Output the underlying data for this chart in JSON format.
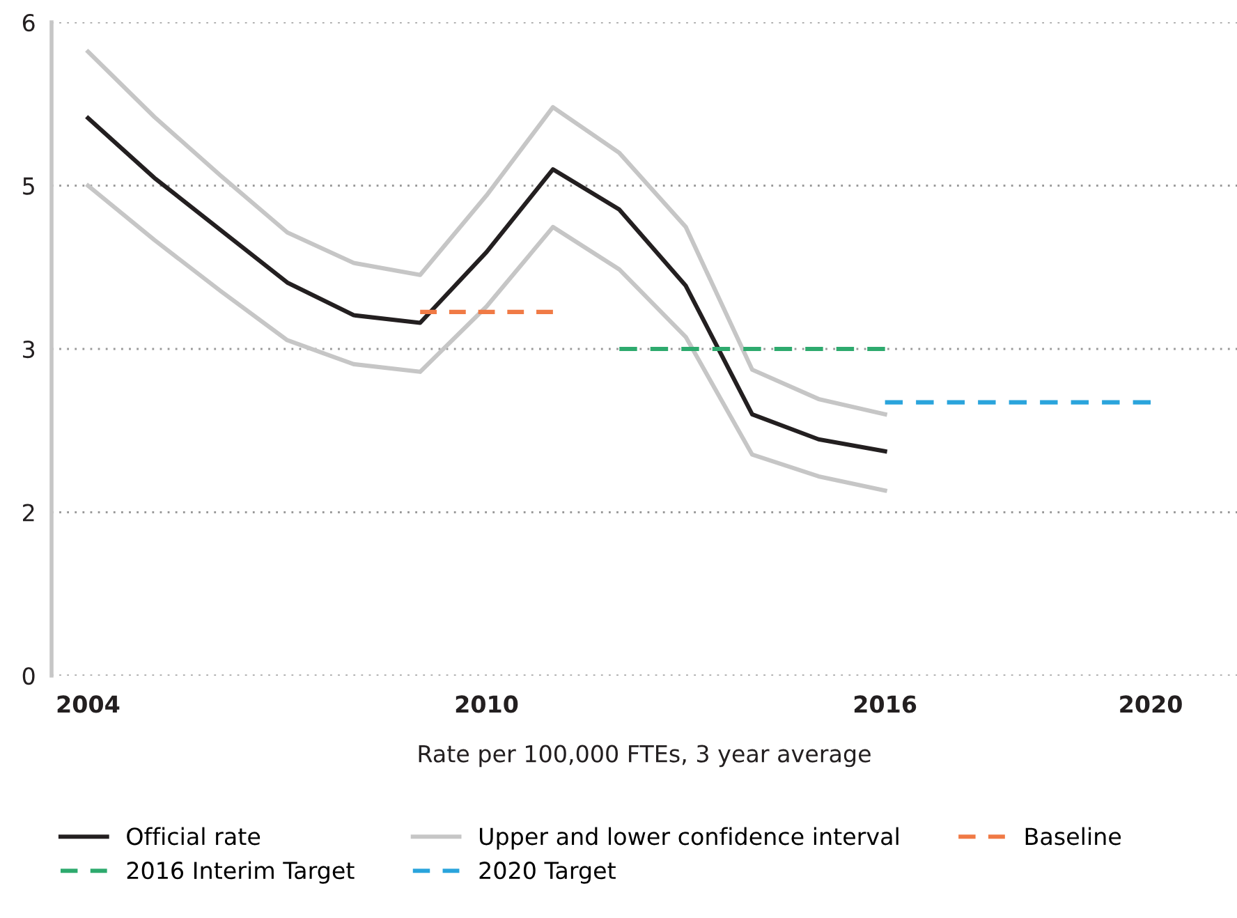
{
  "chart_data": {
    "type": "line",
    "xlabel": "Rate per 100,000 FTEs, 3 year average",
    "x": [
      2004,
      2005,
      2006,
      2007,
      2008,
      2009,
      2010,
      2011,
      2012,
      2013,
      2014,
      2015,
      2016
    ],
    "series": [
      {
        "name": "Official rate",
        "color": "#231f20",
        "values": [
          5.12,
          4.57,
          4.09,
          3.61,
          3.31,
          3.24,
          3.89,
          4.65,
          4.28,
          3.58,
          2.4,
          2.17,
          2.06
        ]
      },
      {
        "name": "Upper and lower confidence interval",
        "color": "#c6c6c6",
        "values": [
          5.73,
          5.13,
          4.59,
          4.07,
          3.79,
          3.68,
          4.41,
          5.22,
          4.8,
          4.12,
          2.81,
          2.54,
          2.4
        ]
      },
      {
        "color": "#c6c6c6",
        "values": [
          4.5,
          4.0,
          3.53,
          3.08,
          2.86,
          2.79,
          3.39,
          4.12,
          3.73,
          3.11,
          2.03,
          1.83,
          1.7
        ]
      },
      {
        "name": "Baseline",
        "color": "#f07a45",
        "x": [
          2009,
          2011
        ],
        "values": [
          3.34,
          3.34
        ],
        "line_style": "dashed"
      },
      {
        "name": "2016 Interim Target",
        "color": "#2eaa6e",
        "x": [
          2012,
          2016
        ],
        "values": [
          3.0,
          3.0
        ],
        "line_style": "dashed"
      },
      {
        "name": "2020 Target",
        "color": "#2aa4dc",
        "x": [
          2016,
          2020
        ],
        "values": [
          2.51,
          2.51
        ],
        "line_style": "dashed"
      }
    ],
    "xlim": [
      2003.45,
      2021.3
    ],
    "xticks": [
      2004,
      2010,
      2016,
      2020
    ],
    "ylim": [
      0,
      6
    ],
    "yticks": [
      0,
      {
        "value": 1.5,
        "label": "2"
      },
      3,
      {
        "value": 4.5,
        "label": "5"
      },
      6
    ],
    "grid": "y",
    "legend": "bottom",
    "marker": "none",
    "line_style": "solid"
  }
}
